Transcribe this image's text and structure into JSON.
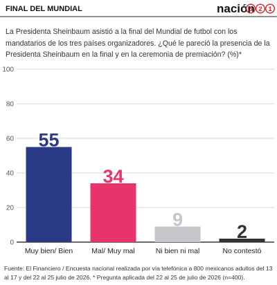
{
  "header": "FINAL DEL MUNDIAL",
  "brand": "nación",
  "brand_digits": [
    "3",
    "2",
    "1"
  ],
  "subtitle": "La Presidenta Sheinbaum asistió a la final del Mundial de futbol con los mandatarios de los tres países organizadores. ¿Qué le pareció la presencia de la Presidenta Sheinbaum en la final y en la ceremonia de premiación?  (%)*",
  "source": "Fuente: El Financiero / Encuesta nacional realizada por vía telefónica a 800 mexicanos adultos del 13 al 17 y del 22 al 25 julio de 2026. * Pregunta aplicada del 22 al 25 de julio de 2026 (n=400).",
  "chart_data": {
    "type": "bar",
    "categories": [
      "Muy bien/ Bien",
      "Mal/ Muy mal",
      "Ni bien ni mal",
      "No contestó"
    ],
    "values": [
      55,
      34,
      9,
      2
    ],
    "colors": [
      "#2b3a87",
      "#e8336b",
      "#c6c6ca",
      "#333333"
    ],
    "ylim": [
      0,
      100
    ],
    "yticks": [
      0,
      20,
      40,
      60,
      80,
      100
    ],
    "grid": true
  }
}
